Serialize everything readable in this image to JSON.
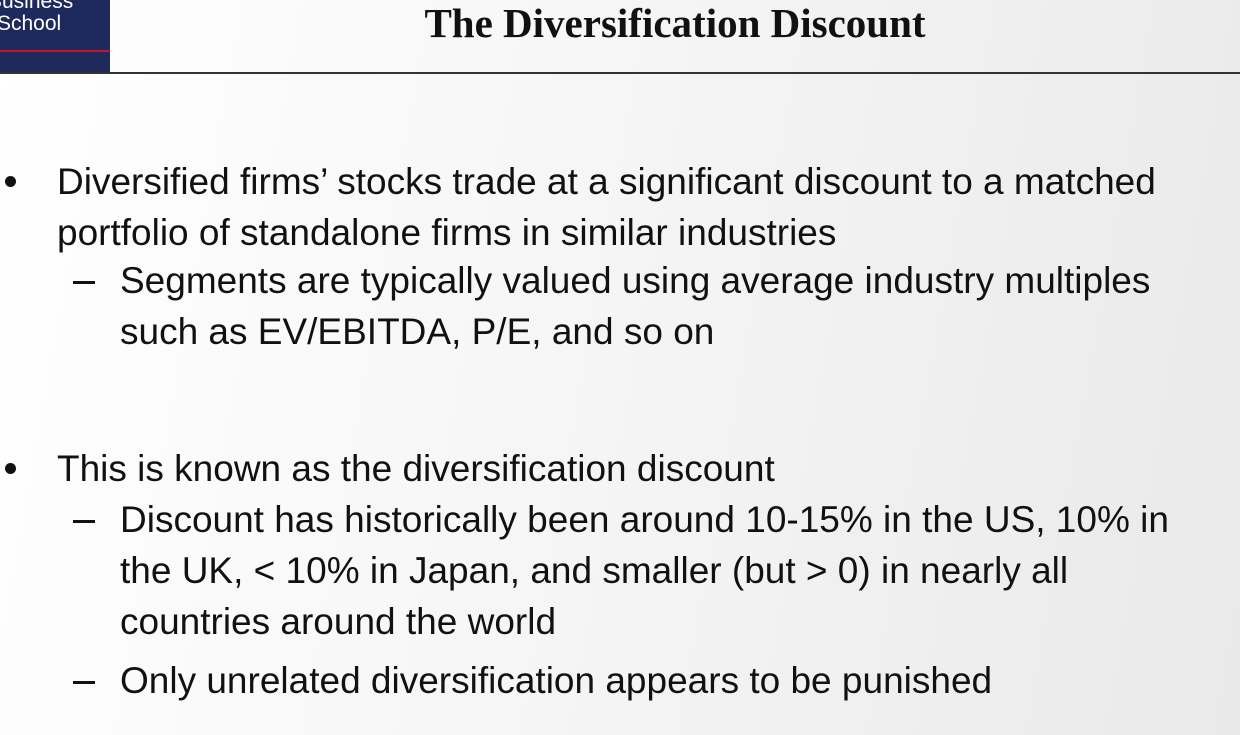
{
  "logo": {
    "line1": "Business",
    "line2": "School"
  },
  "title": "The Diversification Discount",
  "bullets": [
    {
      "text": "Diversified firms’ stocks trade at a significant discount to a matched portfolio of standalone firms in similar industries",
      "subs": [
        "Segments are typically valued using average industry multiples such as EV/EBITDA, P/E, and so on"
      ]
    },
    {
      "text": "This is known as the diversification discount",
      "subs": [
        "Discount has historically been around 10-15% in the US, 10% in the UK, < 10% in Japan, and smaller (but > 0) in nearly all countries around the world",
        "Only unrelated diversification appears to be punished"
      ]
    }
  ]
}
